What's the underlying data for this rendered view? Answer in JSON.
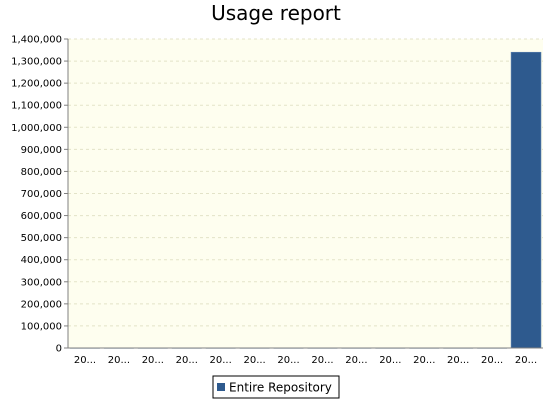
{
  "chart_data": {
    "type": "bar",
    "title": "Usage report",
    "xlabel": "",
    "ylabel": "",
    "categories": [
      "20...",
      "20...",
      "20...",
      "20...",
      "20...",
      "20...",
      "20...",
      "20...",
      "20...",
      "20...",
      "20...",
      "20...",
      "20...",
      "20..."
    ],
    "series": [
      {
        "name": "Entire Repository",
        "color": "#2e5a8e",
        "values": [
          0,
          0,
          0,
          0,
          0,
          0,
          0,
          0,
          0,
          0,
          0,
          0,
          0,
          1340000
        ]
      }
    ],
    "ylim": [
      0,
      1400000
    ],
    "yticks": [
      0,
      100000,
      200000,
      300000,
      400000,
      500000,
      600000,
      700000,
      800000,
      900000,
      1000000,
      1100000,
      1200000,
      1300000,
      1400000
    ],
    "ytick_labels": [
      "0",
      "100,000",
      "200,000",
      "300,000",
      "400,000",
      "500,000",
      "600,000",
      "700,000",
      "800,000",
      "900,000",
      "1,000,000",
      "1,100,000",
      "1,200,000",
      "1,300,000",
      "1,400,000"
    ],
    "grid": true,
    "legend": "bottom-center",
    "plot_background": "#fefeef",
    "grid_color": "#e3e3c8"
  }
}
